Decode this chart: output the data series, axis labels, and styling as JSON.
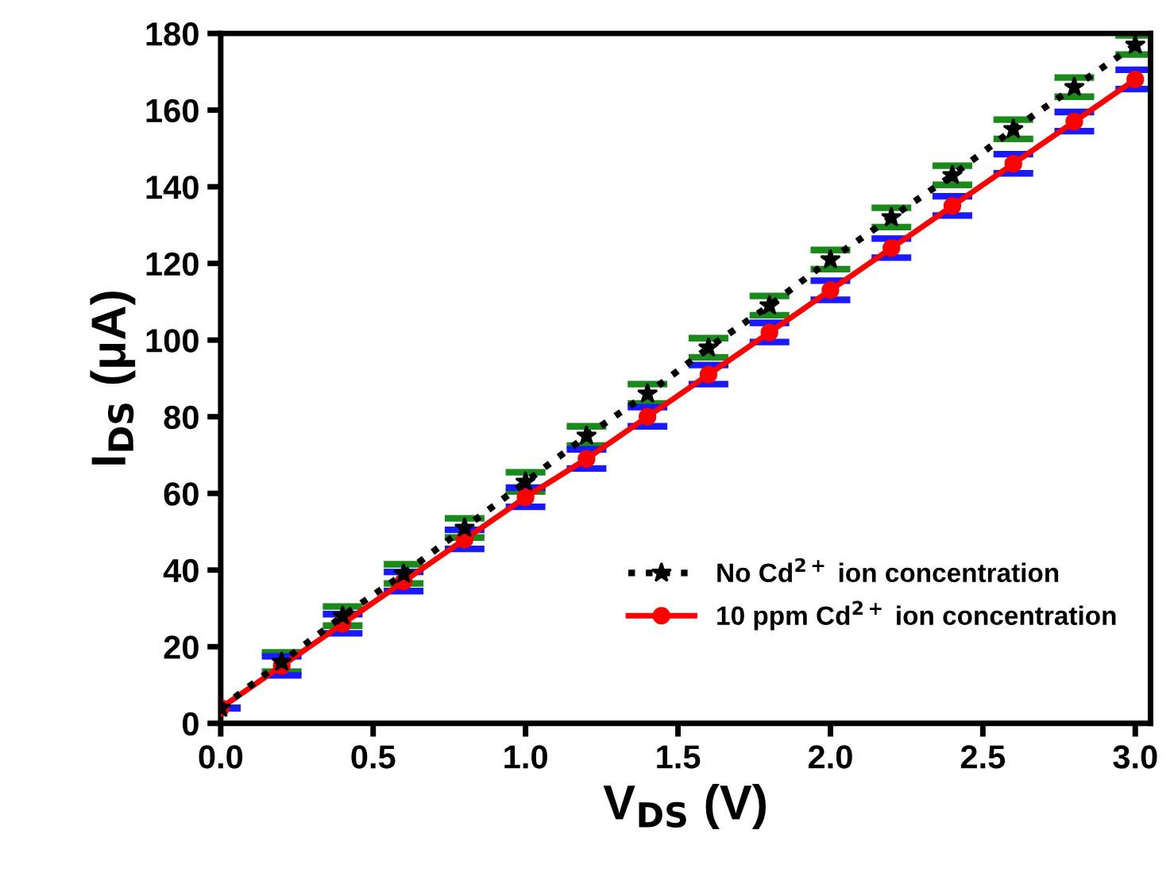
{
  "chart_data": {
    "type": "line",
    "xlabel": "V$_{DS}$ (V)",
    "ylabel": "I$_{DS}$ (μA)",
    "x": [
      0,
      0.2,
      0.4,
      0.6,
      0.8,
      1.0,
      1.2,
      1.4,
      1.6,
      1.8,
      2.0,
      2.2,
      2.4,
      2.6,
      2.8,
      3.0
    ],
    "series": [
      {
        "name": "No Cd$^{2+}$ ion concentration",
        "color": "#000000",
        "marker": "star",
        "line_style": "dotted",
        "errors": [
          null,
          2.5,
          2.5,
          2.5,
          2.5,
          2.5,
          2.5,
          2.5,
          2.5,
          2.5,
          2.5,
          2.5,
          2.5,
          2.5,
          2.5,
          2.5
        ],
        "values": [
          4,
          16,
          28,
          39,
          51,
          63,
          75,
          86,
          98,
          109,
          121,
          132,
          143,
          155,
          166,
          177
        ]
      },
      {
        "name": "10 ppm Cd$^{2+}$ ion concentration",
        "color": "#ff0000",
        "marker": "circle",
        "line_style": "solid",
        "errors": [
          null,
          2.5,
          2.5,
          2.5,
          2.5,
          2.5,
          2.5,
          2.5,
          2.5,
          2.5,
          2.5,
          2.5,
          2.5,
          2.5,
          2.5,
          2.5
        ],
        "values": [
          4,
          15,
          26,
          37,
          48,
          59,
          69,
          80,
          91,
          102,
          113,
          124,
          135,
          146,
          157,
          168
        ]
      }
    ],
    "xlim": [
      0,
      3.05
    ],
    "ylim": [
      0,
      180
    ],
    "xticks": [
      {
        "value": 0,
        "label": "0.0"
      },
      {
        "value": 0.5,
        "label": "0.5"
      },
      {
        "value": 1.0,
        "label": "1.0"
      },
      {
        "value": 1.5,
        "label": "1.5"
      },
      {
        "value": 2.0,
        "label": "2.0"
      },
      {
        "value": 2.5,
        "label": "2.5"
      },
      {
        "value": 3.0,
        "label": "3.0"
      }
    ],
    "yticks": [
      0,
      20,
      40,
      60,
      80,
      100,
      120,
      140,
      160,
      180
    ],
    "legend": "lower right",
    "grid": false
  }
}
